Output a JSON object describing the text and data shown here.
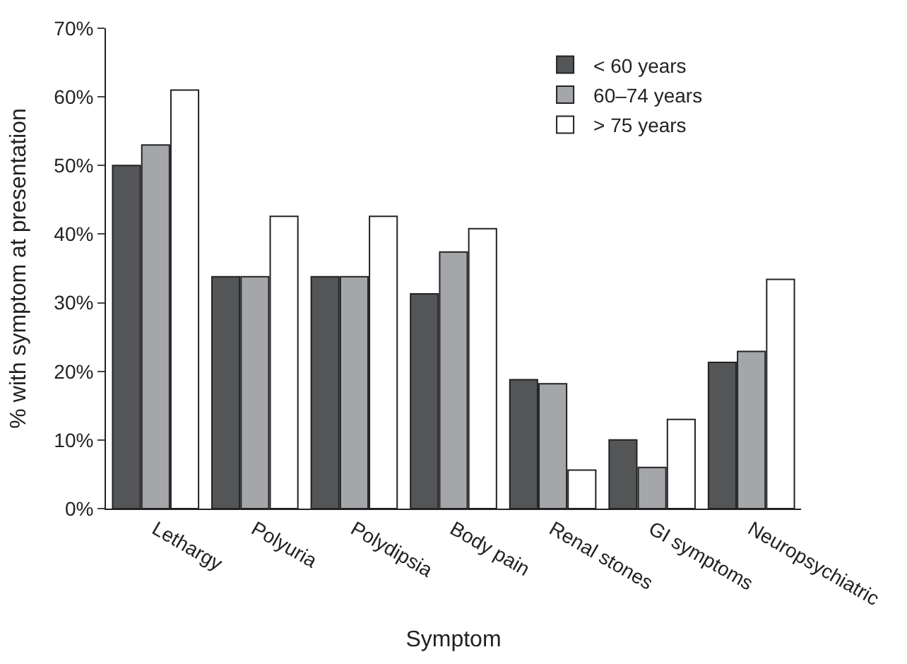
{
  "chart_data": {
    "type": "bar",
    "xlabel": "Symptom",
    "ylabel": "% with symptom at presentation",
    "categories": [
      "Lethargy",
      "Polyuria",
      "Polydipsia",
      "Body pain",
      "Renal stones",
      "GI symptoms",
      "Neuropsychiatric"
    ],
    "series": [
      {
        "name": "< 60 years",
        "color": "#545557",
        "values": [
          50,
          33.8,
          33.8,
          31.3,
          18.8,
          10,
          21.3
        ]
      },
      {
        "name": "60–74 years",
        "color": "#a5a6a9",
        "values": [
          53,
          33.8,
          33.8,
          37.4,
          18.2,
          6,
          22.9
        ]
      },
      {
        "name": "> 75 years",
        "color": "#ffffff",
        "values": [
          61,
          42.6,
          42.6,
          40.8,
          5.6,
          13,
          33.4
        ]
      }
    ],
    "ylim": [
      0,
      70
    ],
    "yticks": [
      {
        "value": 0,
        "label": "0%"
      },
      {
        "value": 10,
        "label": "10%"
      },
      {
        "value": 20,
        "label": "20%"
      },
      {
        "value": 30,
        "label": "30%"
      },
      {
        "value": 40,
        "label": "40%"
      },
      {
        "value": 50,
        "label": "50%"
      },
      {
        "value": 60,
        "label": "60%"
      },
      {
        "value": 70,
        "label": "70%"
      }
    ],
    "legend": "top right"
  }
}
